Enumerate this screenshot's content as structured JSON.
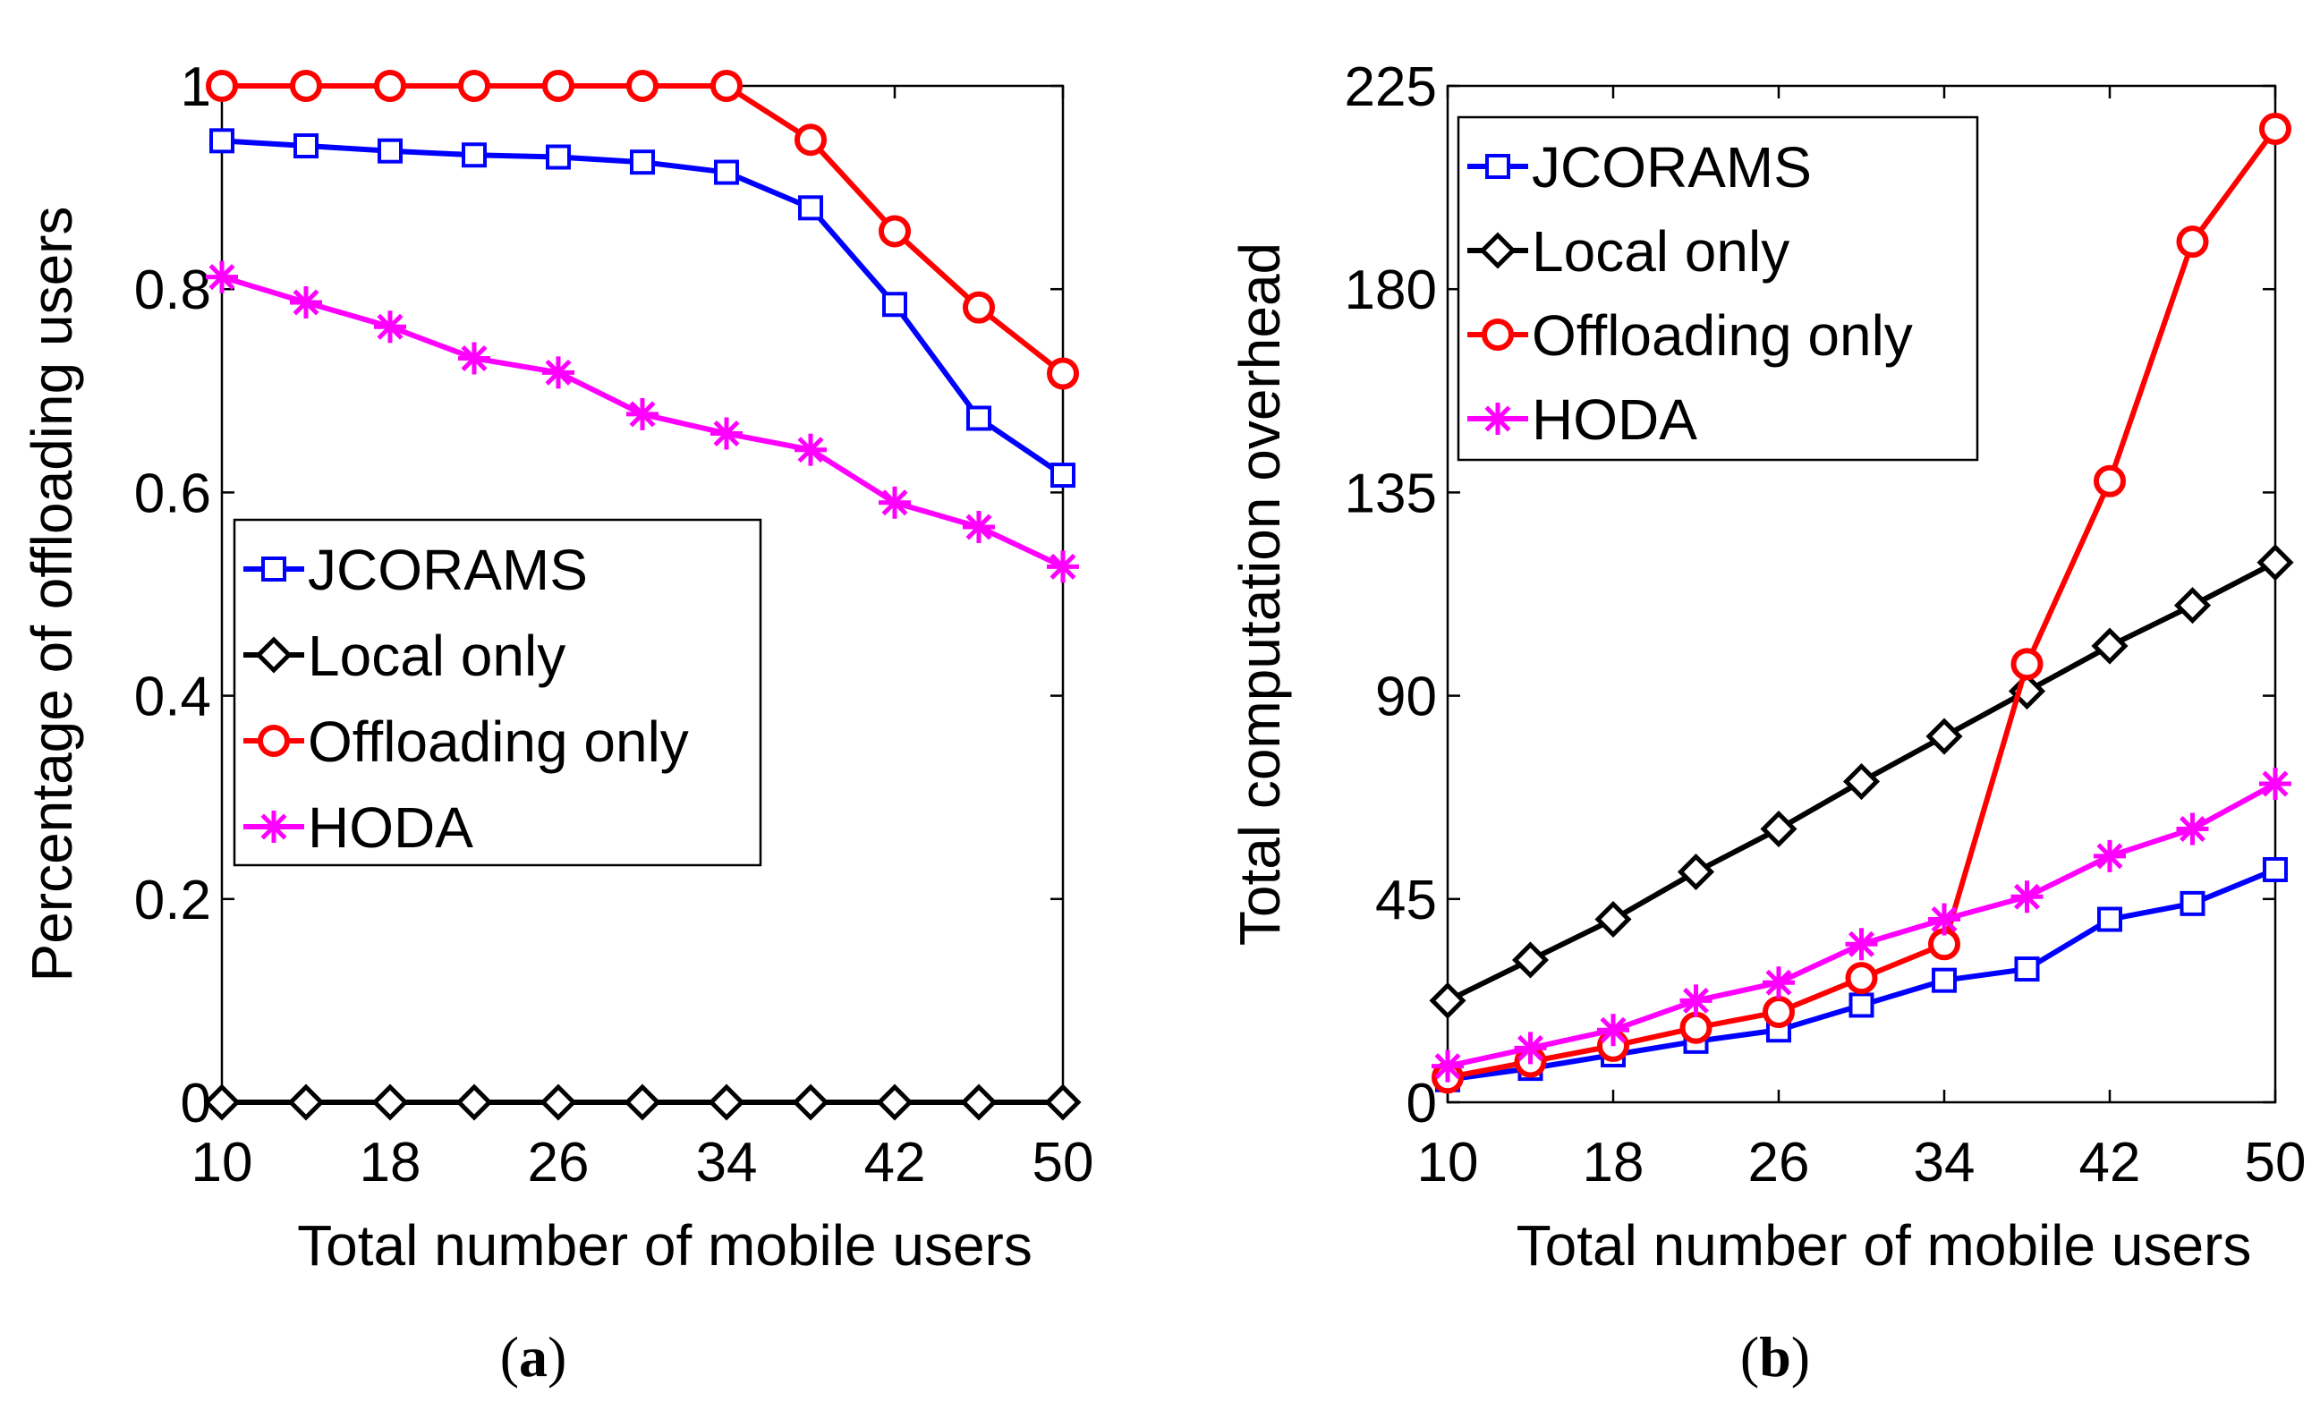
{
  "captions": [
    "(a)",
    "(b)"
  ],
  "colors": {
    "JCORAMS": "#0000ff",
    "Local only": "#000000",
    "Offloading only": "#ff0000",
    "HODA": "#ff00ff"
  },
  "chart_data": [
    {
      "type": "line",
      "caption": "(a)",
      "xlabel": "Total number of mobile users",
      "ylabel": "Percentage of offloading users",
      "x": [
        10,
        14,
        18,
        22,
        26,
        30,
        34,
        38,
        42,
        46,
        50
      ],
      "xticks": [
        10,
        18,
        26,
        34,
        42,
        50
      ],
      "xtick_labels": [
        "10",
        "18",
        "26",
        "34",
        "42",
        "50"
      ],
      "yticks": [
        0,
        0.2,
        0.4,
        0.6,
        0.8,
        1
      ],
      "ytick_labels": [
        "0",
        "0.2",
        "0.4",
        "0.6",
        "0.8",
        "1"
      ],
      "xlim": [
        10,
        50
      ],
      "ylim": [
        0,
        1
      ],
      "legend": "center",
      "grid": false,
      "series": [
        {
          "name": "JCORAMS",
          "marker": "square",
          "values": [
            0.946,
            0.941,
            0.936,
            0.932,
            0.93,
            0.925,
            0.915,
            0.88,
            0.785,
            0.673,
            0.617
          ]
        },
        {
          "name": "Local only",
          "marker": "diamond",
          "values": [
            0,
            0,
            0,
            0,
            0,
            0,
            0,
            0,
            0,
            0,
            0
          ]
        },
        {
          "name": "Offloading only",
          "marker": "circle",
          "values": [
            1,
            1,
            1,
            1,
            1,
            1,
            1,
            0.947,
            0.857,
            0.782,
            0.717
          ]
        },
        {
          "name": "HODA",
          "marker": "asterisk",
          "values": [
            0.812,
            0.787,
            0.763,
            0.732,
            0.718,
            0.677,
            0.658,
            0.642,
            0.59,
            0.566,
            0.527
          ]
        }
      ]
    },
    {
      "type": "line",
      "caption": "(b)",
      "xlabel": "Total number of mobile users",
      "ylabel": "Total computation overhead",
      "x": [
        10,
        14,
        18,
        22,
        26,
        30,
        34,
        38,
        42,
        46,
        50
      ],
      "xticks": [
        10,
        18,
        26,
        34,
        42,
        50
      ],
      "xtick_labels": [
        "10",
        "18",
        "26",
        "34",
        "42",
        "50"
      ],
      "yticks": [
        0,
        45,
        90,
        135,
        180,
        225
      ],
      "ytick_labels": [
        "0",
        "45",
        "90",
        "135",
        "180",
        "225"
      ],
      "xlim": [
        10,
        50
      ],
      "ylim": [
        0,
        225
      ],
      "legend": "top-left",
      "grid": false,
      "series": [
        {
          "name": "JCORAMS",
          "marker": "square",
          "values": [
            5,
            7.5,
            10.5,
            13.5,
            16,
            21.5,
            27,
            29.5,
            40.5,
            44,
            51.5
          ]
        },
        {
          "name": "Local only",
          "marker": "diamond",
          "values": [
            22.5,
            31.5,
            40.5,
            51,
            60.5,
            71,
            81,
            91,
            101,
            110,
            119.5
          ]
        },
        {
          "name": "Offloading only",
          "marker": "circle",
          "values": [
            5.5,
            9,
            12.5,
            16.5,
            20,
            27.5,
            35,
            97,
            137.5,
            190.5,
            215.5
          ]
        },
        {
          "name": "HODA",
          "marker": "asterisk",
          "values": [
            8,
            12,
            16,
            22.5,
            26.5,
            35,
            40.5,
            45.5,
            54.5,
            60.5,
            70.5
          ]
        }
      ]
    }
  ]
}
